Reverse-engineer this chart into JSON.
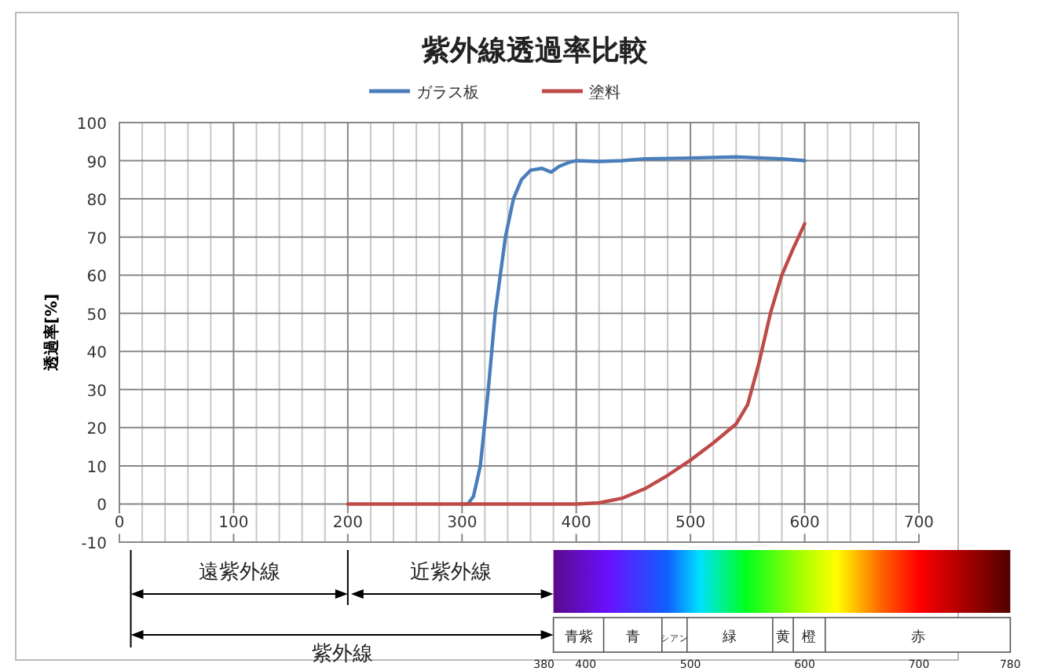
{
  "chart_data": {
    "type": "line",
    "title": "紫外線透過率比較",
    "ylabel": "透過率[%]",
    "xlim": [
      0,
      700
    ],
    "xticks": [
      0,
      100,
      200,
      300,
      400,
      500,
      600,
      700
    ],
    "ylim": [
      -10,
      100
    ],
    "yticks": [
      -10,
      0,
      10,
      20,
      30,
      40,
      50,
      60,
      70,
      80,
      90,
      100
    ],
    "grid": true,
    "legend": "top",
    "series": [
      {
        "name": "ガラス板",
        "color": "#4a7ebb",
        "x": [
          300,
          305,
          310,
          316,
          323,
          329,
          338,
          345,
          352,
          360,
          370,
          378,
          385,
          395,
          400,
          420,
          440,
          460,
          500,
          540,
          580,
          600
        ],
        "values": [
          0,
          0,
          2,
          10,
          30,
          50,
          70,
          80,
          85,
          87.5,
          88,
          87,
          88.5,
          89.7,
          90,
          89.8,
          90,
          90.5,
          90.7,
          91,
          90.5,
          90
        ]
      },
      {
        "name": "塗料",
        "color": "#be4b48",
        "x": [
          200,
          300,
          400,
          420,
          440,
          460,
          480,
          500,
          520,
          540,
          550,
          560,
          570,
          580,
          590,
          600
        ],
        "values": [
          0,
          0,
          0,
          0.3,
          1.5,
          4,
          7.5,
          11.5,
          16,
          21,
          26,
          37,
          50,
          60,
          67,
          73.5
        ]
      }
    ],
    "annotations": [
      "遠紫外線",
      "近紫外線",
      "紫外線",
      "青紫",
      "青",
      "シアン",
      "緑",
      "黄",
      "橙",
      "赤",
      "380",
      "400",
      "500",
      "600",
      "700",
      "780"
    ]
  }
}
